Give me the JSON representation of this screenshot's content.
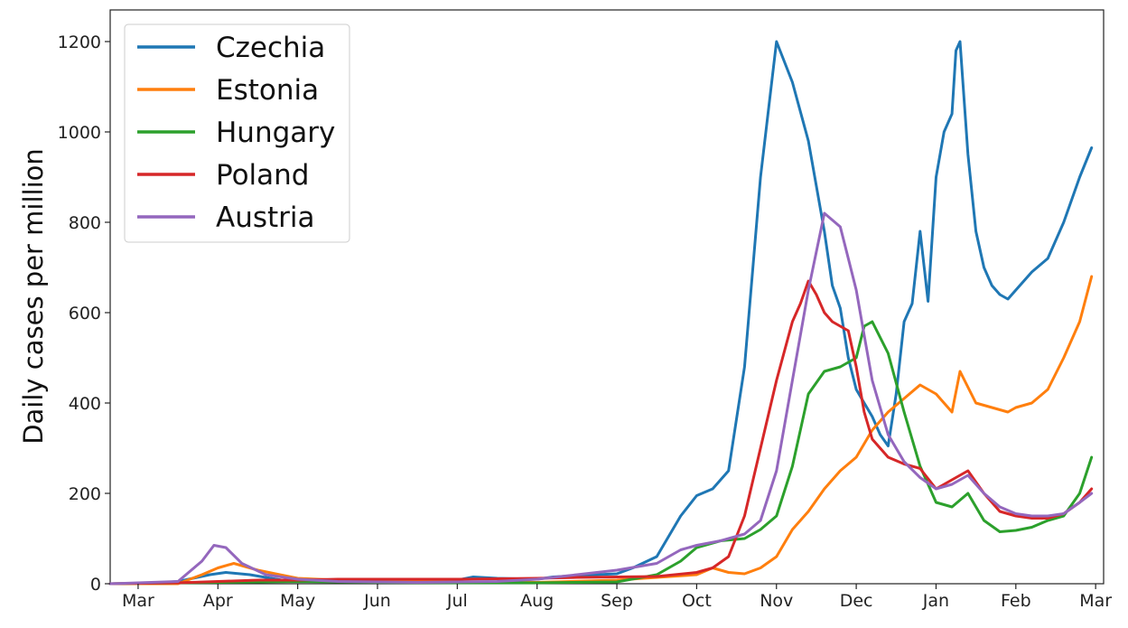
{
  "chart_data": {
    "type": "line",
    "title": "",
    "xlabel": "",
    "ylabel": "Daily cases per million",
    "x_tick_labels": [
      "Mar",
      "Apr",
      "May",
      "Jun",
      "Jul",
      "Aug",
      "Sep",
      "Oct",
      "Nov",
      "Dec",
      "Jan",
      "Feb",
      "Mar"
    ],
    "y_ticks": [
      0,
      200,
      400,
      600,
      800,
      1000,
      1200
    ],
    "xlim": [
      -0.35,
      12.1
    ],
    "ylim": [
      0,
      1270
    ],
    "grid": false,
    "legend_position": "top-left",
    "series": [
      {
        "name": "Czechia",
        "color": "#1f77b4",
        "x": [
          -0.35,
          0.1,
          0.5,
          0.9,
          1.1,
          1.4,
          1.8,
          2.5,
          3.5,
          4.0,
          4.2,
          4.5,
          5.0,
          5.2,
          5.5,
          6.0,
          6.2,
          6.5,
          6.8,
          7.0,
          7.2,
          7.4,
          7.6,
          7.8,
          8.0,
          8.2,
          8.4,
          8.6,
          8.7,
          8.8,
          8.9,
          9.0,
          9.1,
          9.2,
          9.3,
          9.4,
          9.5,
          9.6,
          9.7,
          9.8,
          9.9,
          10.0,
          10.1,
          10.2,
          10.25,
          10.3,
          10.4,
          10.5,
          10.6,
          10.7,
          10.8,
          10.9,
          11.0,
          11.2,
          11.4,
          11.6,
          11.8,
          11.95
        ],
        "values": [
          0,
          0,
          5,
          20,
          25,
          20,
          8,
          5,
          5,
          8,
          15,
          12,
          10,
          15,
          18,
          22,
          35,
          60,
          150,
          195,
          210,
          250,
          480,
          900,
          1200,
          1110,
          980,
          780,
          660,
          610,
          500,
          430,
          400,
          370,
          330,
          305,
          420,
          580,
          620,
          780,
          625,
          900,
          1000,
          1040,
          1180,
          1200,
          950,
          780,
          700,
          660,
          640,
          630,
          650,
          690,
          720,
          800,
          900,
          965
        ]
      },
      {
        "name": "Estonia",
        "color": "#ff7f0e",
        "x": [
          -0.35,
          0.5,
          0.8,
          1.0,
          1.2,
          1.5,
          2.0,
          2.5,
          3.5,
          5.0,
          6.0,
          7.0,
          7.2,
          7.4,
          7.6,
          7.8,
          8.0,
          8.2,
          8.4,
          8.6,
          8.8,
          9.0,
          9.2,
          9.4,
          9.6,
          9.8,
          10.0,
          10.2,
          10.3,
          10.5,
          10.7,
          10.9,
          11.0,
          11.2,
          11.4,
          11.6,
          11.8,
          11.95
        ],
        "values": [
          0,
          0,
          20,
          35,
          45,
          30,
          12,
          8,
          5,
          3,
          8,
          20,
          35,
          25,
          22,
          35,
          60,
          120,
          160,
          210,
          250,
          280,
          340,
          380,
          410,
          440,
          420,
          380,
          470,
          400,
          390,
          380,
          390,
          400,
          430,
          500,
          580,
          680
        ]
      },
      {
        "name": "Hungary",
        "color": "#2ca02c",
        "x": [
          -0.35,
          1.0,
          2.0,
          3.0,
          4.0,
          5.0,
          6.0,
          6.5,
          6.8,
          7.0,
          7.3,
          7.6,
          7.8,
          8.0,
          8.2,
          8.4,
          8.6,
          8.8,
          9.0,
          9.1,
          9.2,
          9.4,
          9.6,
          9.8,
          10.0,
          10.2,
          10.4,
          10.6,
          10.8,
          11.0,
          11.2,
          11.4,
          11.6,
          11.8,
          11.95
        ],
        "values": [
          0,
          3,
          5,
          3,
          2,
          2,
          4,
          20,
          50,
          80,
          95,
          100,
          120,
          150,
          260,
          420,
          470,
          480,
          500,
          570,
          580,
          510,
          380,
          260,
          180,
          170,
          200,
          140,
          115,
          118,
          125,
          140,
          150,
          200,
          280
        ]
      },
      {
        "name": "Poland",
        "color": "#d62728",
        "x": [
          -0.35,
          0.5,
          1.0,
          1.5,
          2.0,
          2.5,
          3.0,
          3.5,
          4.0,
          5.0,
          5.5,
          6.0,
          6.5,
          7.0,
          7.2,
          7.4,
          7.6,
          7.8,
          8.0,
          8.2,
          8.3,
          8.4,
          8.5,
          8.6,
          8.7,
          8.8,
          8.9,
          9.0,
          9.1,
          9.2,
          9.4,
          9.6,
          9.8,
          10.0,
          10.2,
          10.4,
          10.6,
          10.8,
          11.0,
          11.2,
          11.4,
          11.6,
          11.8,
          11.95
        ],
        "values": [
          0,
          2,
          5,
          8,
          8,
          10,
          10,
          10,
          10,
          12,
          14,
          15,
          16,
          25,
          35,
          60,
          150,
          300,
          450,
          580,
          620,
          670,
          640,
          600,
          580,
          570,
          560,
          480,
          380,
          320,
          280,
          265,
          255,
          210,
          230,
          250,
          200,
          160,
          150,
          145,
          145,
          155,
          180,
          210
        ]
      },
      {
        "name": "Austria",
        "color": "#9467bd",
        "x": [
          -0.35,
          0.5,
          0.8,
          0.95,
          1.1,
          1.3,
          1.6,
          2.0,
          2.5,
          3.5,
          4.5,
          5.0,
          5.5,
          6.0,
          6.5,
          6.8,
          7.0,
          7.3,
          7.6,
          7.8,
          8.0,
          8.2,
          8.4,
          8.6,
          8.8,
          8.9,
          9.0,
          9.1,
          9.2,
          9.4,
          9.6,
          9.8,
          10.0,
          10.2,
          10.4,
          10.6,
          10.8,
          11.0,
          11.2,
          11.4,
          11.6,
          11.8,
          11.95
        ],
        "values": [
          0,
          5,
          50,
          85,
          80,
          45,
          20,
          10,
          5,
          3,
          5,
          10,
          20,
          30,
          45,
          75,
          85,
          95,
          110,
          140,
          250,
          450,
          650,
          820,
          790,
          720,
          650,
          550,
          450,
          330,
          270,
          235,
          210,
          220,
          240,
          200,
          170,
          155,
          150,
          150,
          155,
          180,
          200
        ]
      }
    ]
  }
}
